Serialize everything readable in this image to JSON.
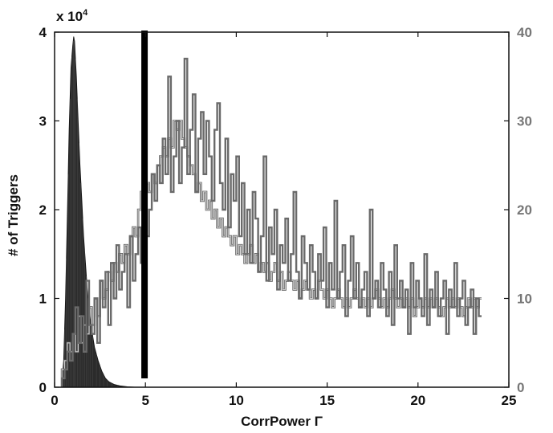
{
  "chart_data": {
    "type": "histogram",
    "xlabel": "CorrPower Γ",
    "ylabel": "# of Triggers",
    "y_exponent_label": "x 10",
    "y_exponent": "4",
    "xlim": [
      0,
      25
    ],
    "ylim_left": [
      0,
      4
    ],
    "ylim_right": [
      0,
      40
    ],
    "x_ticks": [
      "0",
      "5",
      "10",
      "15",
      "20",
      "25"
    ],
    "y_ticks_left": [
      "0",
      "1",
      "2",
      "3",
      "4"
    ],
    "y_ticks_right": [
      "0",
      "10",
      "20",
      "30",
      "40"
    ],
    "threshold_line": {
      "x": 4.95,
      "y_range": [
        0.1,
        4.0
      ]
    },
    "series": [
      {
        "axis": "left",
        "style": "filled dark histogram",
        "color": "#2b2b2b",
        "x": [
          0.4,
          0.5,
          0.6,
          0.7,
          0.8,
          0.9,
          1.0,
          1.05,
          1.1,
          1.2,
          1.3,
          1.4,
          1.5,
          1.6,
          1.7,
          1.8,
          1.9,
          2.0,
          2.2,
          2.4,
          2.6,
          2.8,
          3.0,
          3.3,
          3.6,
          4.0,
          4.5
        ],
        "values": [
          0.05,
          0.3,
          1.0,
          1.9,
          2.9,
          3.6,
          3.85,
          3.95,
          3.9,
          3.5,
          3.0,
          2.5,
          2.1,
          1.7,
          1.4,
          1.1,
          0.9,
          0.7,
          0.45,
          0.3,
          0.18,
          0.1,
          0.06,
          0.03,
          0.015,
          0.005,
          0.0
        ]
      },
      {
        "axis": "right",
        "style": "light-outline step histogram",
        "color": "#cccccc",
        "bin_start": 0.4,
        "bin_width": 0.15,
        "values": [
          2,
          3,
          5,
          4,
          6,
          4,
          8,
          5,
          7,
          6,
          9,
          7,
          10,
          8,
          12,
          10,
          11,
          13,
          12,
          14,
          13,
          15,
          14,
          16,
          15,
          17,
          18,
          17,
          20,
          22,
          21,
          23,
          22,
          24,
          23,
          25,
          26,
          27,
          26,
          28,
          27,
          30,
          29,
          30,
          28,
          27,
          26,
          25,
          24,
          22,
          23,
          21,
          22,
          20,
          21,
          19,
          20,
          18,
          19,
          17,
          18,
          17,
          16,
          17,
          15,
          16,
          15,
          14,
          15,
          16,
          14,
          15,
          13,
          14,
          13,
          14,
          12,
          13,
          14,
          12,
          13,
          11,
          12,
          13,
          12,
          11,
          12,
          10,
          11,
          12,
          11,
          10,
          11,
          10,
          12,
          11,
          10,
          11,
          10,
          9,
          10,
          11,
          10,
          9,
          10,
          9,
          10,
          11,
          10,
          9,
          10,
          9,
          10,
          9,
          10,
          11,
          10,
          9,
          10,
          9,
          10,
          11,
          10,
          9,
          10,
          9,
          10,
          9,
          10,
          8,
          9,
          10,
          9,
          10,
          9,
          10,
          9,
          10,
          9,
          8,
          9,
          10,
          9,
          10,
          9,
          10,
          9,
          8,
          9,
          10,
          9,
          10,
          9,
          10
        ]
      },
      {
        "axis": "right",
        "style": "gray step histogram",
        "color": "#6a6a6a",
        "bin_start": 0.4,
        "bin_width": 0.15,
        "values": [
          1,
          2,
          4,
          3,
          6,
          9,
          5,
          8,
          4,
          12,
          7,
          6,
          10,
          5,
          12,
          9,
          13,
          7,
          14,
          10,
          16,
          11,
          13,
          15,
          9,
          17,
          12,
          15,
          18,
          14,
          22,
          17,
          20,
          24,
          21,
          25,
          23,
          28,
          24,
          35,
          22,
          26,
          30,
          23,
          27,
          37,
          24,
          29,
          33,
          22,
          28,
          31,
          24,
          30,
          26,
          21,
          29,
          32,
          23,
          20,
          28,
          18,
          24,
          21,
          26,
          17,
          23,
          15,
          20,
          14,
          22,
          19,
          13,
          17,
          26,
          12,
          18,
          15,
          20,
          11,
          16,
          14,
          19,
          12,
          15,
          22,
          13,
          10,
          17,
          14,
          11,
          16,
          13,
          10,
          15,
          12,
          18,
          9,
          14,
          11,
          21,
          10,
          13,
          16,
          8,
          12,
          17,
          10,
          14,
          9,
          11,
          13,
          8,
          20,
          10,
          12,
          9,
          14,
          11,
          8,
          13,
          7,
          16,
          10,
          12,
          9,
          11,
          6,
          14,
          9,
          12,
          10,
          8,
          15,
          7,
          11,
          9,
          13,
          8,
          10,
          12,
          6,
          11,
          9,
          14,
          8,
          10,
          12,
          7,
          9,
          11,
          6,
          10,
          8
        ]
      }
    ]
  }
}
